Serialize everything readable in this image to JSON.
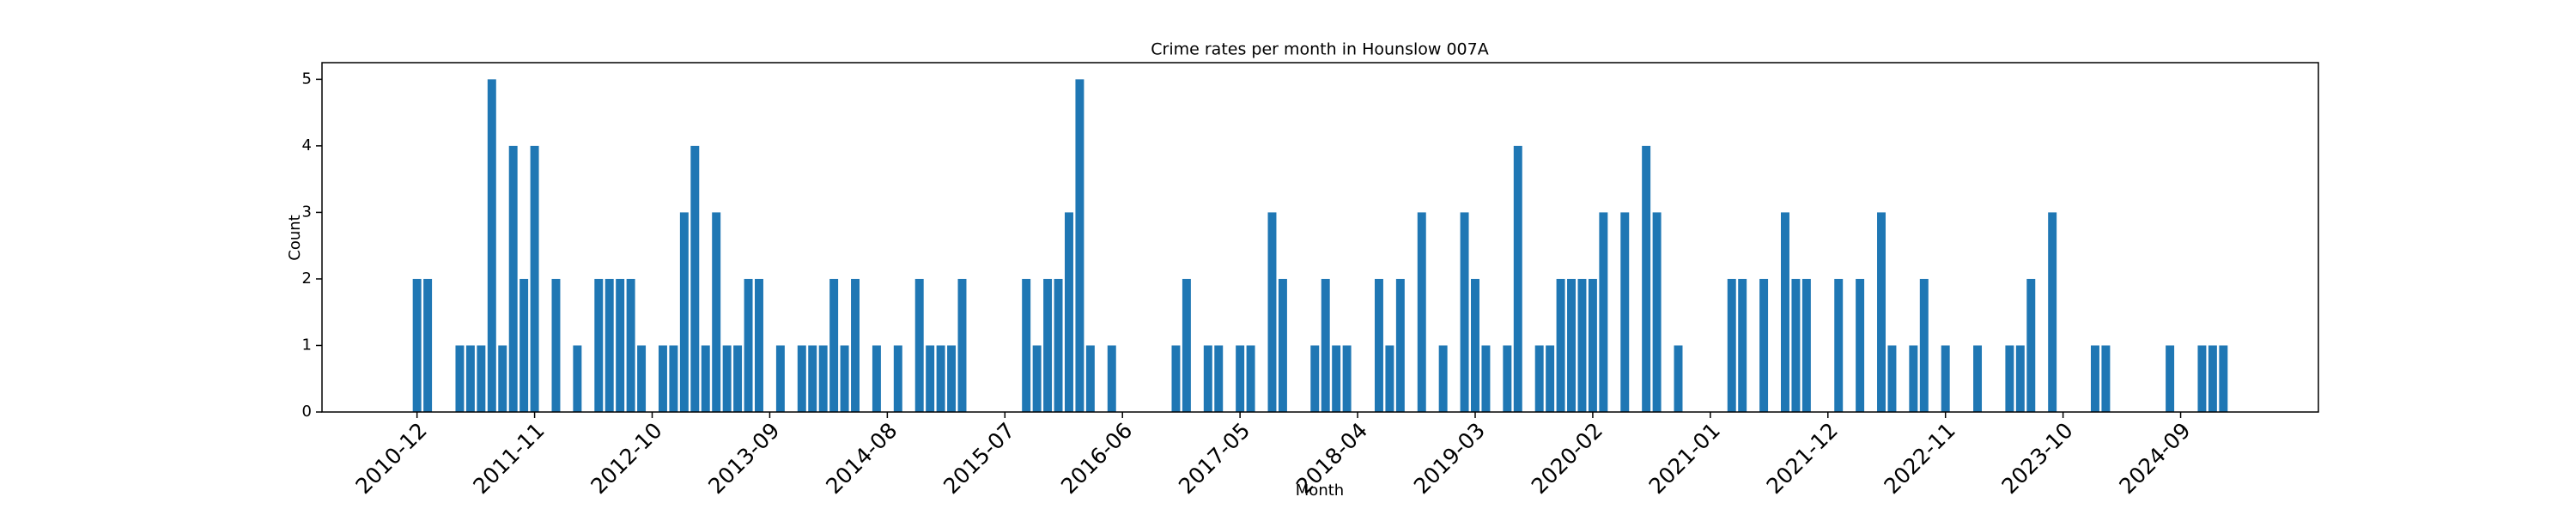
{
  "chart_data": {
    "type": "bar",
    "title": "Crime rates per month in Hounslow 007A",
    "x_label": "Month",
    "y_label": "Count",
    "color": "#1f77b4",
    "categories": [
      "2010-12",
      null,
      null,
      null,
      null,
      null,
      null,
      null,
      null,
      null,
      null,
      "2011-11",
      null,
      null,
      null,
      null,
      null,
      null,
      null,
      null,
      null,
      null,
      "2012-10",
      null,
      null,
      null,
      null,
      null,
      null,
      null,
      null,
      null,
      null,
      "2013-09",
      null,
      null,
      null,
      null,
      null,
      null,
      null,
      null,
      null,
      null,
      "2014-08",
      null,
      null,
      null,
      null,
      null,
      null,
      null,
      null,
      null,
      null,
      "2015-07",
      null,
      null,
      null,
      null,
      null,
      null,
      null,
      null,
      null,
      null,
      "2016-06",
      null,
      null,
      null,
      null,
      null,
      null,
      null,
      null,
      null,
      null,
      "2017-05",
      null,
      null,
      null,
      null,
      null,
      null,
      null,
      null,
      null,
      null,
      "2018-04",
      null,
      null,
      null,
      null,
      null,
      null,
      null,
      null,
      null,
      null,
      "2019-03",
      null,
      null,
      null,
      null,
      null,
      null,
      null,
      null,
      null,
      null,
      "2020-02",
      null,
      null,
      null,
      null,
      null,
      null,
      null,
      null,
      null,
      null,
      "2021-01",
      null,
      null,
      null,
      null,
      null,
      null,
      null,
      null,
      null,
      null,
      "2021-12",
      null,
      null,
      null,
      null,
      null,
      null,
      null,
      null,
      null,
      null,
      "2022-11",
      null,
      null,
      null,
      null,
      null,
      null,
      null,
      null,
      null,
      null,
      "2023-10",
      null,
      null,
      null,
      null,
      null,
      null,
      null,
      null,
      null,
      null,
      "2024-09",
      null,
      null,
      null,
      null
    ],
    "values": [
      2,
      2,
      0,
      0,
      1,
      1,
      1,
      5,
      1,
      4,
      2,
      4,
      0,
      2,
      0,
      1,
      0,
      2,
      2,
      2,
      2,
      1,
      0,
      1,
      1,
      3,
      4,
      1,
      3,
      1,
      1,
      2,
      2,
      0,
      1,
      0,
      1,
      1,
      1,
      2,
      1,
      2,
      0,
      1,
      0,
      1,
      0,
      2,
      1,
      1,
      1,
      2,
      0,
      0,
      0,
      0,
      0,
      2,
      1,
      2,
      2,
      3,
      5,
      1,
      0,
      1,
      0,
      0,
      0,
      0,
      0,
      1,
      2,
      0,
      1,
      1,
      0,
      1,
      1,
      0,
      3,
      2,
      0,
      0,
      1,
      2,
      1,
      1,
      0,
      0,
      2,
      1,
      2,
      0,
      3,
      0,
      1,
      0,
      3,
      2,
      1,
      0,
      1,
      4,
      0,
      1,
      1,
      2,
      2,
      2,
      2,
      3,
      0,
      3,
      0,
      4,
      3,
      0,
      1,
      0,
      0,
      0,
      0,
      2,
      2,
      0,
      2,
      0,
      3,
      2,
      2,
      0,
      0,
      2,
      0,
      2,
      0,
      3,
      1,
      0,
      1,
      2,
      0,
      1,
      0,
      0,
      1,
      0,
      0,
      1,
      1,
      2,
      0,
      3,
      0,
      0,
      0,
      1,
      1,
      0,
      0,
      0,
      0,
      0,
      1,
      0,
      0,
      1,
      1,
      1
    ],
    "ylim": [
      0,
      5.25
    ],
    "yticks": [
      0,
      1,
      2,
      3,
      4,
      5
    ]
  }
}
